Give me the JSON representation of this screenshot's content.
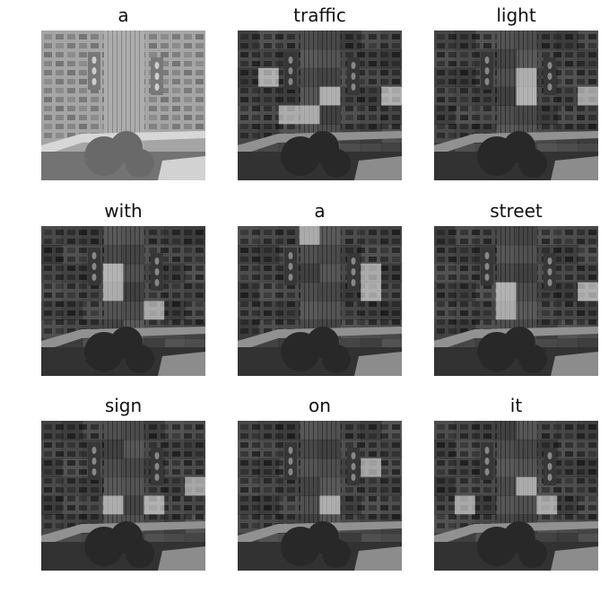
{
  "panels": [
    {
      "word": "a",
      "highlights": []
    },
    {
      "word": "traffic",
      "highlights": [
        [
          2,
          4
        ],
        [
          3,
          4
        ],
        [
          6,
          7
        ],
        [
          1,
          2
        ],
        [
          4,
          3
        ],
        [
          7,
          3
        ]
      ]
    },
    {
      "word": "light",
      "highlights": [
        [
          4,
          2
        ],
        [
          4,
          3
        ],
        [
          6,
          7
        ],
        [
          7,
          3
        ]
      ]
    },
    {
      "word": "with",
      "highlights": [
        [
          3,
          2
        ],
        [
          3,
          3
        ],
        [
          5,
          4
        ],
        [
          6,
          7
        ]
      ]
    },
    {
      "word": "a",
      "highlights": [
        [
          3,
          0
        ],
        [
          6,
          2
        ],
        [
          6,
          3
        ],
        [
          5,
          7
        ]
      ]
    },
    {
      "word": "street",
      "highlights": [
        [
          3,
          3
        ],
        [
          3,
          4
        ],
        [
          4,
          7
        ],
        [
          7,
          3
        ]
      ]
    },
    {
      "word": "sign",
      "highlights": [
        [
          3,
          4
        ],
        [
          5,
          4
        ],
        [
          3,
          7
        ],
        [
          7,
          3
        ]
      ]
    },
    {
      "word": "on",
      "highlights": [
        [
          4,
          4
        ],
        [
          5,
          7
        ],
        [
          6,
          2
        ]
      ]
    },
    {
      "word": "it",
      "highlights": [
        [
          4,
          3
        ],
        [
          5,
          4
        ],
        [
          6,
          7
        ],
        [
          1,
          4
        ]
      ]
    }
  ],
  "colors": {
    "background": "#ffffff",
    "title": "#111111"
  }
}
